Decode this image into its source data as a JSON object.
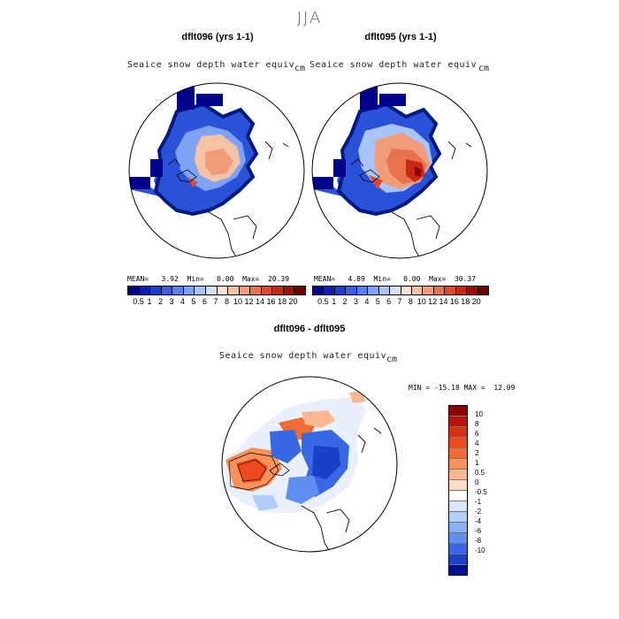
{
  "season": "JJA",
  "panels": [
    {
      "title": "dflt096 (yrs 1-1)",
      "variable": "Seaice snow depth water equiv",
      "units": "cm",
      "mean_label": "MEAN=",
      "mean": "3.92",
      "min_label": "Min=",
      "min": "0.00",
      "max_label": "Max=",
      "max": "20.39"
    },
    {
      "title": "dflt095 (yrs 1-1)",
      "variable": "Seaice snow depth water equiv",
      "units": "cm",
      "mean_label": "MEAN=",
      "mean": "4.89",
      "min_label": "Min=",
      "min": "0.00",
      "max_label": "Max=",
      "max": "30.37"
    }
  ],
  "diff": {
    "title": "dflt096 - dflt095",
    "variable": "Seaice snow depth water equiv",
    "units": "cm",
    "stats": "MIN = -15.18 MAX =  12.09"
  },
  "colorbar": {
    "ticks": [
      "0.5",
      "1",
      "2",
      "3",
      "4",
      "5",
      "6",
      "7",
      "8",
      "10",
      "12",
      "14",
      "16",
      "18",
      "20"
    ],
    "colors": [
      "#00008b",
      "#0a1fb0",
      "#1f3fd4",
      "#3a5ee8",
      "#5a82f0",
      "#7ea3f5",
      "#a8c4f8",
      "#d4e3fb",
      "#fbe3d4",
      "#f6c2a4",
      "#f19c78",
      "#e87250",
      "#dc4a2c",
      "#c62a14",
      "#a01008",
      "#6e0000"
    ]
  },
  "diff_colorbar": {
    "labels": [
      "10",
      "8",
      "6",
      "4",
      "2",
      "1",
      "0.5",
      "0",
      "-0.5",
      "-1",
      "-2",
      "-4",
      "-6",
      "-8",
      "-10"
    ],
    "colors": [
      "#8b0000",
      "#b81408",
      "#d83012",
      "#ec4a1e",
      "#f46a34",
      "#f8925c",
      "#fbb792",
      "#fbdcc6",
      "#ffffff",
      "#d9e6fa",
      "#b2cdf7",
      "#89b0f2",
      "#5f8ef0",
      "#3868e4",
      "#1a40c8",
      "#00108e"
    ]
  }
}
